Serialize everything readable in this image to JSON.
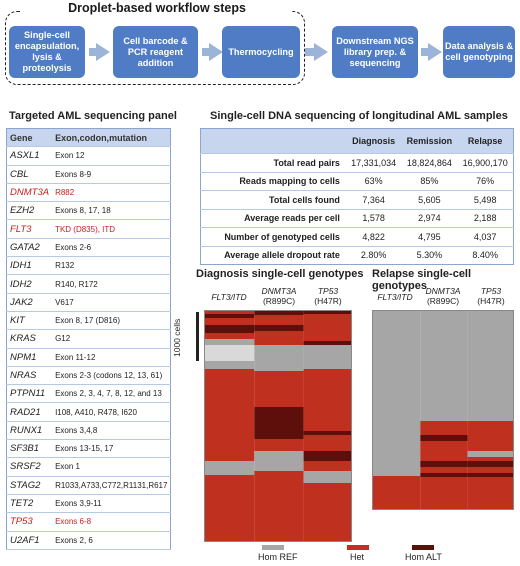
{
  "workflow": {
    "title": "Droplet-based workflow steps",
    "steps": [
      "Single-cell encapsulation, lysis & proteolysis",
      "Cell barcode & PCR reagent addition",
      "Thermocycling",
      "Downstream NGS library prep. & sequencing",
      "Data analysis & cell genotyping"
    ]
  },
  "panel": {
    "title": "Targeted AML sequencing panel",
    "headers": [
      "Gene",
      "Exon,codon,mutation"
    ],
    "rows": [
      {
        "gene": "ASXL1",
        "detail": "Exon 12",
        "highlight": false
      },
      {
        "gene": "CBL",
        "detail": "Exons 8-9",
        "highlight": false
      },
      {
        "gene": "DNMT3A",
        "detail": "R882",
        "highlight": true
      },
      {
        "gene": "EZH2",
        "detail": "Exons 8, 17, 18",
        "highlight": false
      },
      {
        "gene": "FLT3",
        "detail": "TKD (D835), ITD",
        "highlight": true
      },
      {
        "gene": "GATA2",
        "detail": "Exons 2-6",
        "highlight": false
      },
      {
        "gene": "IDH1",
        "detail": "R132",
        "highlight": false
      },
      {
        "gene": "IDH2",
        "detail": "R140, R172",
        "highlight": false
      },
      {
        "gene": "JAK2",
        "detail": "V617",
        "highlight": false
      },
      {
        "gene": "KIT",
        "detail": "Exon 8, 17 (D816)",
        "highlight": false
      },
      {
        "gene": "KRAS",
        "detail": "G12",
        "highlight": false
      },
      {
        "gene": "NPM1",
        "detail": "Exon 11-12",
        "highlight": false
      },
      {
        "gene": "NRAS",
        "detail": "Exons 2-3 (codons 12, 13, 61)",
        "highlight": false
      },
      {
        "gene": "PTPN11",
        "detail": "Exons 2, 3, 4, 7, 8, 12, and 13",
        "highlight": false
      },
      {
        "gene": "RAD21",
        "detail": "I108, A410, R478, I620",
        "highlight": false
      },
      {
        "gene": "RUNX1",
        "detail": "Exons 3,4,8",
        "highlight": false
      },
      {
        "gene": "SF3B1",
        "detail": "Exons 13-15, 17",
        "highlight": false
      },
      {
        "gene": "SRSF2",
        "detail": "Exon 1",
        "highlight": false
      },
      {
        "gene": "STAG2",
        "detail": "R1033,A733,C772,R1131,R617",
        "highlight": false
      },
      {
        "gene": "TET2",
        "detail": "Exons 3,9-11",
        "highlight": false
      },
      {
        "gene": "TP53",
        "detail": "Exons 6-8",
        "highlight": true
      },
      {
        "gene": "U2AF1",
        "detail": "Exons 2, 6",
        "highlight": false
      }
    ]
  },
  "stats": {
    "title": "Single-cell DNA sequencing of longitudinal AML samples",
    "columns": [
      "Diagnosis",
      "Remission",
      "Relapse"
    ],
    "rows": [
      {
        "label": "Total read pairs",
        "values": [
          "17,331,034",
          "18,824,864",
          "16,900,170"
        ]
      },
      {
        "label": "Reads mapping to cells",
        "values": [
          "63%",
          "85%",
          "76%"
        ]
      },
      {
        "label": "Total  cells found",
        "values": [
          "7,364",
          "5,605",
          "5,498"
        ]
      },
      {
        "label": "Average reads per cell",
        "values": [
          "1,578",
          "2,974",
          "2,188"
        ]
      },
      {
        "label": "Number of genotyped cells",
        "values": [
          "4,822",
          "4,795",
          "4,037"
        ]
      },
      {
        "label": "Average allele dropout rate",
        "values": [
          "2.80%",
          "5.30%",
          "8.40%"
        ]
      }
    ]
  },
  "heatmaps": {
    "diagnosis_title": "Diagnosis single-cell genotypes",
    "relapse_title": "Relapse single-cell genotypes",
    "col1": "FLT3/ITD",
    "col2_gene": "DNMT3A",
    "col2_mut": "(R899C)",
    "col3_gene": "TP53",
    "col3_mut": "(H47R)",
    "scale_label": "1000 cells"
  },
  "legend": {
    "hom_ref": "Hom REF",
    "het": "Het",
    "hom_alt": "Hom ALT"
  },
  "colors": {
    "step": "#4f7cc4",
    "hom_ref": "#a6a6a6",
    "het": "#c0301e",
    "hom_alt": "#5e0f0b"
  }
}
